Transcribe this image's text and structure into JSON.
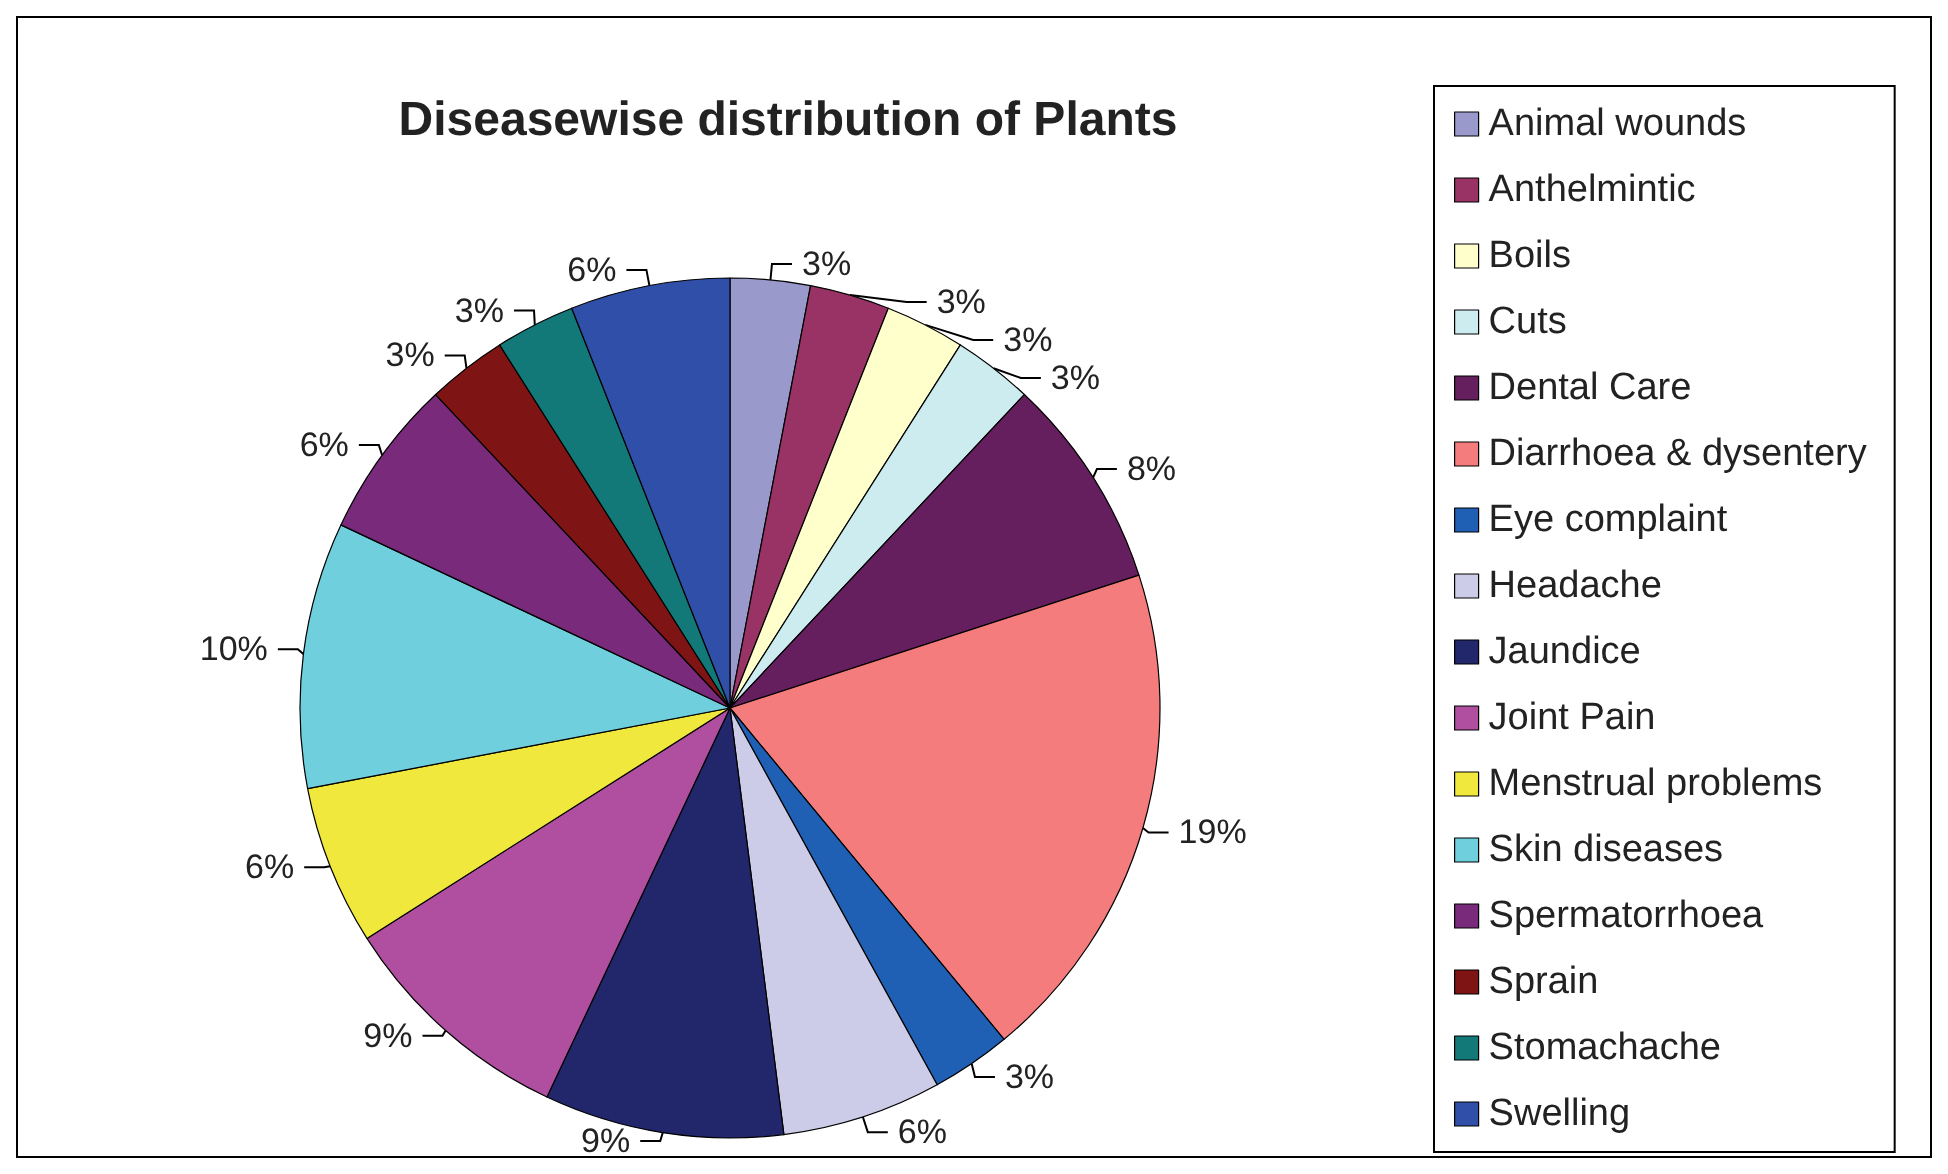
{
  "chart_data": {
    "type": "pie",
    "title": "Diseasewise distribution of Plants",
    "categories": [
      "Animal wounds",
      "Anthelmintic",
      "Boils",
      "Cuts",
      "Dental Care",
      "Diarrhoea & dysentery",
      "Eye complaint",
      "Headache",
      "Jaundice",
      "Joint Pain",
      "Menstrual problems",
      "Skin diseases",
      "Spermatorrhoea",
      "Sprain",
      "Stomachache",
      "Swelling"
    ],
    "values": [
      3,
      3,
      3,
      3,
      8,
      19,
      3,
      6,
      9,
      9,
      6,
      10,
      6,
      3,
      3,
      6
    ],
    "value_labels": [
      "3%",
      "3%",
      "3%",
      "3%",
      "8%",
      "19%",
      "3%",
      "6%",
      "9%",
      "9%",
      "6%",
      "10%",
      "6%",
      "3%",
      "3%",
      "6%"
    ],
    "colors": [
      "#9999cc",
      "#993366",
      "#ffffcc",
      "#ccecf0",
      "#661f5e",
      "#f47c7c",
      "#1f5fb4",
      "#cccce8",
      "#22266b",
      "#b04fa0",
      "#f0e83c",
      "#6fcfdc",
      "#7a2a7a",
      "#7f1414",
      "#127878",
      "#2f4fa8"
    ],
    "legend": "right"
  }
}
